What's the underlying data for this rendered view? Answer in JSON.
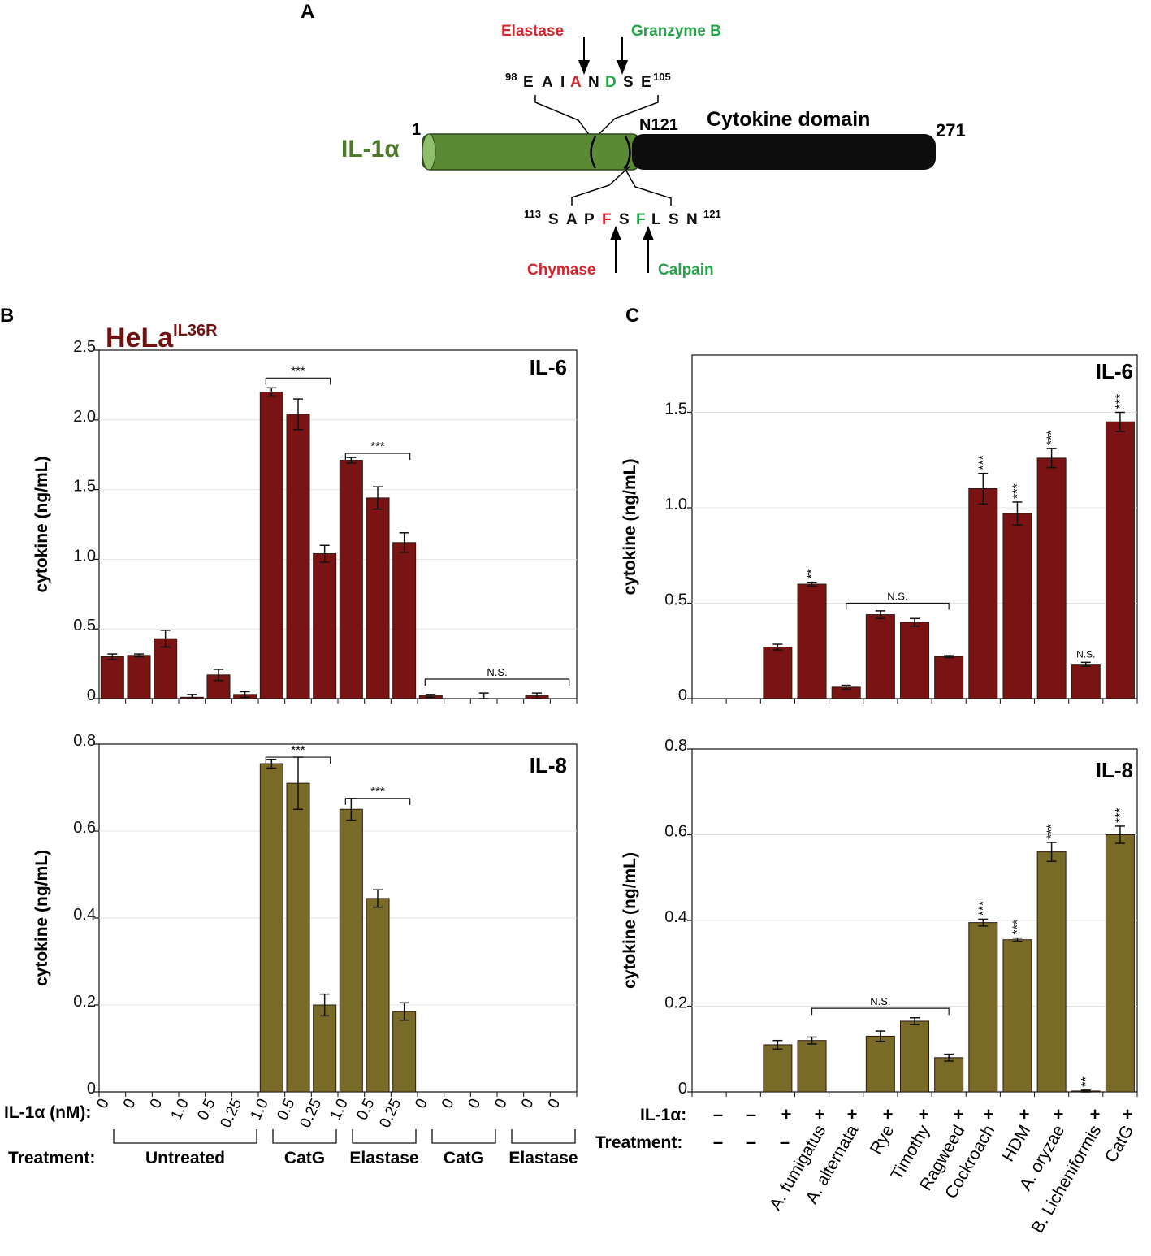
{
  "colors": {
    "il6_bar": "#7a1414",
    "il8_bar": "#7a6a27",
    "il1a_green": "#4f7a2c",
    "red_label": "#d3262e",
    "green_label": "#27a34a",
    "hela_title": "#6e1212"
  },
  "panelA": {
    "letter": "A",
    "protein": "IL-1α",
    "start_num": "1",
    "end_num": "271",
    "n121_label": "N121",
    "domain_label": "Cytokine domain",
    "top_proteases": [
      {
        "name": "Elastase",
        "color": "red"
      },
      {
        "name": "Granzyme B",
        "color": "green"
      }
    ],
    "top_seq": {
      "start_sup": "98",
      "residues": [
        "E",
        "A",
        "I",
        "A",
        "N",
        "D",
        "S",
        "E"
      ],
      "colors": [
        "k",
        "k",
        "k",
        "r",
        "k",
        "g",
        "k",
        "k"
      ],
      "end_sup": "105"
    },
    "bottom_seq": {
      "start_sup": "113",
      "residues": [
        "S",
        "A",
        "P",
        "F",
        "S",
        "F",
        "L",
        "S",
        "N"
      ],
      "colors": [
        "k",
        "k",
        "k",
        "r",
        "k",
        "g",
        "k",
        "k",
        "k"
      ],
      "end_sup": "121"
    },
    "bottom_proteases": [
      {
        "name": "Chymase",
        "color": "red"
      },
      {
        "name": "Calpain",
        "color": "green"
      }
    ]
  },
  "panelB": {
    "letter": "B",
    "cell_line": "HeLa",
    "cell_line_sup": "IL36R",
    "x_row_label": "IL-1α (nM):",
    "treat_row_label": "Treatment:",
    "x_labels": [
      "0",
      "0",
      "0",
      "1.0",
      "0.5",
      "0.25",
      "1.0",
      "0.5",
      "0.25",
      "1.0",
      "0.5",
      "0.25",
      "0",
      "0",
      "0",
      "0",
      "0",
      "0"
    ],
    "groups": [
      {
        "label": "Untreated",
        "start": 0,
        "end": 5
      },
      {
        "label": "CatG",
        "start": 6,
        "end": 8
      },
      {
        "label": "Elastase",
        "start": 9,
        "end": 11
      },
      {
        "label": "CatG",
        "start": 12,
        "end": 14
      },
      {
        "label": "Elastase",
        "start": 15,
        "end": 17
      }
    ]
  },
  "panelC": {
    "letter": "C",
    "il1a_row_label": "IL-1α:",
    "il1a_signs": [
      "–",
      "–",
      "+",
      "+",
      "+",
      "+",
      "+",
      "+",
      "+",
      "+",
      "+",
      "+",
      "+"
    ],
    "treat_row_label": "Treatment:",
    "treat_dashes": [
      "–",
      "–",
      "–"
    ],
    "treatments": [
      "",
      "",
      "",
      "A. fumigatus",
      "A. alternata",
      "Rye",
      "Timothy",
      "Ragweed",
      "Cockroach",
      "HDM",
      "A. oryzae",
      "B. Licheniformis",
      "CatG"
    ]
  },
  "chart_data": [
    {
      "id": "B-IL6",
      "type": "bar",
      "title": "IL-6",
      "ylabel": "cytokine (ng/mL)",
      "ylim": [
        0,
        2.5
      ],
      "yticks": [
        0,
        0.5,
        1.0,
        1.5,
        2.0,
        2.5
      ],
      "ytick_labels": [
        "0",
        "0.5",
        "1.0",
        "1.5",
        "2.0",
        "2.5"
      ],
      "categories": [
        "0",
        "0",
        "0",
        "1.0",
        "0.5",
        "0.25",
        "1.0",
        "0.5",
        "0.25",
        "1.0",
        "0.5",
        "0.25",
        "0",
        "0",
        "0",
        "0",
        "0",
        "0"
      ],
      "values": [
        0.3,
        0.31,
        0.43,
        0.01,
        0.17,
        0.03,
        2.2,
        2.04,
        1.04,
        1.71,
        1.44,
        1.12,
        0.02,
        0,
        0,
        0,
        0.02,
        0
      ],
      "errors": [
        0.02,
        0.01,
        0.06,
        0.02,
        0.04,
        0.02,
        0.03,
        0.11,
        0.06,
        0.02,
        0.08,
        0.07,
        0.01,
        0,
        0.04,
        0,
        0.02,
        0
      ],
      "significance": [
        {
          "start": 6,
          "end": 8,
          "label": "***",
          "y": 2.3
        },
        {
          "start": 9,
          "end": 11,
          "label": "***",
          "y": 1.76
        },
        {
          "start": 12,
          "end": 17,
          "label": "N.S.",
          "y": 0.14
        }
      ]
    },
    {
      "id": "B-IL8",
      "type": "bar",
      "title": "IL-8",
      "ylabel": "cytokine (ng/mL)",
      "ylim": [
        0,
        0.8
      ],
      "yticks": [
        0,
        0.2,
        0.4,
        0.6,
        0.8
      ],
      "ytick_labels": [
        "0",
        "0.2",
        "0.4",
        "0.6",
        "0.8"
      ],
      "categories": [
        "0",
        "0",
        "0",
        "1.0",
        "0.5",
        "0.25",
        "1.0",
        "0.5",
        "0.25",
        "1.0",
        "0.5",
        "0.25",
        "0",
        "0",
        "0",
        "0",
        "0",
        "0"
      ],
      "values": [
        0,
        0,
        0,
        0,
        0,
        0,
        0.755,
        0.71,
        0.2,
        0.65,
        0.445,
        0.185,
        0,
        0,
        0,
        0,
        0,
        0
      ],
      "errors": [
        0,
        0,
        0,
        0,
        0,
        0,
        0.01,
        0.06,
        0.025,
        0.025,
        0.02,
        0.02,
        0,
        0,
        0,
        0,
        0,
        0
      ],
      "significance": [
        {
          "start": 6,
          "end": 8,
          "label": "***",
          "y": 0.77
        },
        {
          "start": 9,
          "end": 11,
          "label": "***",
          "y": 0.675
        }
      ]
    },
    {
      "id": "C-IL6",
      "type": "bar",
      "title": "IL-6",
      "ylabel": "cytokine (ng/mL)",
      "ylim": [
        0,
        1.8
      ],
      "yticks": [
        0,
        0.5,
        1.0,
        1.5
      ],
      "ytick_labels": [
        "0",
        "0.5",
        "1.0",
        "1.5"
      ],
      "categories": [
        "",
        "",
        "",
        "A. fumigatus",
        "A. alternata",
        "Rye",
        "Timothy",
        "Ragweed",
        "Cockroach",
        "HDM",
        "A. oryzae",
        "B. Licheniformis",
        "CatG"
      ],
      "values": [
        0,
        0,
        0.27,
        0.6,
        0.06,
        0.44,
        0.4,
        0.22,
        1.1,
        0.97,
        1.26,
        0.18,
        1.45
      ],
      "errors": [
        0,
        0,
        0.015,
        0.01,
        0.01,
        0.02,
        0.02,
        0.005,
        0.08,
        0.06,
        0.05,
        0.01,
        0.05
      ],
      "stars": [
        "",
        "",
        "",
        "**",
        "",
        "",
        "",
        "",
        "***",
        "***",
        "***",
        "N.S.",
        "***"
      ],
      "significance": [
        {
          "start": 4,
          "end": 7,
          "label": "N.S.",
          "y": 0.5
        }
      ]
    },
    {
      "id": "C-IL8",
      "type": "bar",
      "title": "IL-8",
      "ylabel": "cytokine (ng/mL)",
      "ylim": [
        0,
        0.8
      ],
      "yticks": [
        0,
        0.2,
        0.4,
        0.6,
        0.8
      ],
      "ytick_labels": [
        "0",
        "0.2",
        "0.4",
        "0.6",
        "0.8"
      ],
      "categories": [
        "",
        "",
        "",
        "A. fumigatus",
        "A. alternata",
        "Rye",
        "Timothy",
        "Ragweed",
        "Cockroach",
        "HDM",
        "A. oryzae",
        "B. Licheniformis",
        "CatG"
      ],
      "values": [
        0,
        0,
        0.11,
        0.12,
        0,
        0.13,
        0.165,
        0.08,
        0.395,
        0.355,
        0.56,
        0.002,
        0.6
      ],
      "errors": [
        0,
        0,
        0.01,
        0.008,
        0,
        0.012,
        0.008,
        0.008,
        0.008,
        0.004,
        0.022,
        0.002,
        0.02
      ],
      "stars": [
        "",
        "",
        "",
        "",
        "",
        "",
        "",
        "",
        "***",
        "***",
        "***",
        "**",
        "***"
      ],
      "significance": [
        {
          "start": 3,
          "end": 7,
          "label": "N.S.",
          "y": 0.195
        }
      ]
    }
  ]
}
